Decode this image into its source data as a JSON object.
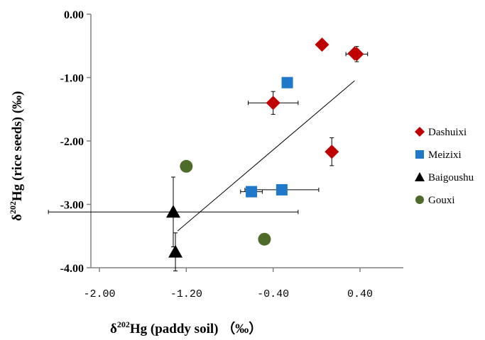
{
  "chart_data": {
    "type": "scatter",
    "title": "",
    "xlabel": {
      "prefix": "δ",
      "sup": "202",
      "rest": "Hg (paddy soil) （‰）"
    },
    "ylabel": {
      "prefix": "δ",
      "sup": "202",
      "rest": "Hg (rice seeds) (‰)"
    },
    "xlim": [
      -2.0,
      0.8
    ],
    "ylim": [
      -4.0,
      0.0
    ],
    "xticks": [
      {
        "value": -2.0,
        "label": "-2.00"
      },
      {
        "value": -1.2,
        "label": "-1.20"
      },
      {
        "value": -0.4,
        "label": "-0.40"
      },
      {
        "value": 0.4,
        "label": "0.40"
      }
    ],
    "yticks": [
      {
        "value": 0.0,
        "label": "0.00"
      },
      {
        "value": -1.0,
        "label": "-1.00"
      },
      {
        "value": -2.0,
        "label": "-2.00"
      },
      {
        "value": -3.0,
        "label": "-3.00"
      },
      {
        "value": -4.0,
        "label": "-4.00"
      }
    ],
    "grid": false,
    "legend_position": "right",
    "series": [
      {
        "name": "Dashuixi",
        "marker": "diamond",
        "color": "#c00000",
        "points": [
          {
            "x": 0.05,
            "y": -0.48,
            "xerr": 0.0,
            "yerr": 0.0
          },
          {
            "x": 0.37,
            "y": -0.63,
            "xerr": 0.1,
            "yerr": 0.12
          },
          {
            "x": 0.35,
            "y": -0.62,
            "xerr": 0.0,
            "yerr": 0.0
          },
          {
            "x": -0.4,
            "y": -1.4,
            "xerr": 0.23,
            "yerr": 0.18
          },
          {
            "x": 0.14,
            "y": -2.17,
            "xerr": 0.0,
            "yerr": 0.22
          }
        ]
      },
      {
        "name": "Meizixi",
        "marker": "square",
        "color": "#1f78c8",
        "points": [
          {
            "x": -0.27,
            "y": -1.08,
            "xerr": 0.0,
            "yerr": 0.0
          },
          {
            "x": -0.6,
            "y": -2.8,
            "xerr": 0.1,
            "yerr": 0.0
          },
          {
            "x": -0.32,
            "y": -2.77,
            "xerr": 0.34,
            "yerr": 0.0
          }
        ]
      },
      {
        "name": "Baigoushu",
        "marker": "triangle",
        "color": "#000000",
        "points": [
          {
            "x": -1.32,
            "y": -3.12,
            "xerr": 1.15,
            "yerr": 0.55
          },
          {
            "x": -1.3,
            "y": -3.75,
            "xerr": 0.0,
            "yerr": 0.3
          }
        ]
      },
      {
        "name": "Gouxi",
        "marker": "circle",
        "color": "#4f6b2a",
        "points": [
          {
            "x": -1.2,
            "y": -2.4,
            "xerr": 0.0,
            "yerr": 0.0
          },
          {
            "x": -0.48,
            "y": -3.55,
            "xerr": 0.0,
            "yerr": 0.0
          }
        ]
      }
    ],
    "trendline": {
      "x": [
        -1.28,
        0.35
      ],
      "y": [
        -3.42,
        -1.05
      ]
    }
  }
}
